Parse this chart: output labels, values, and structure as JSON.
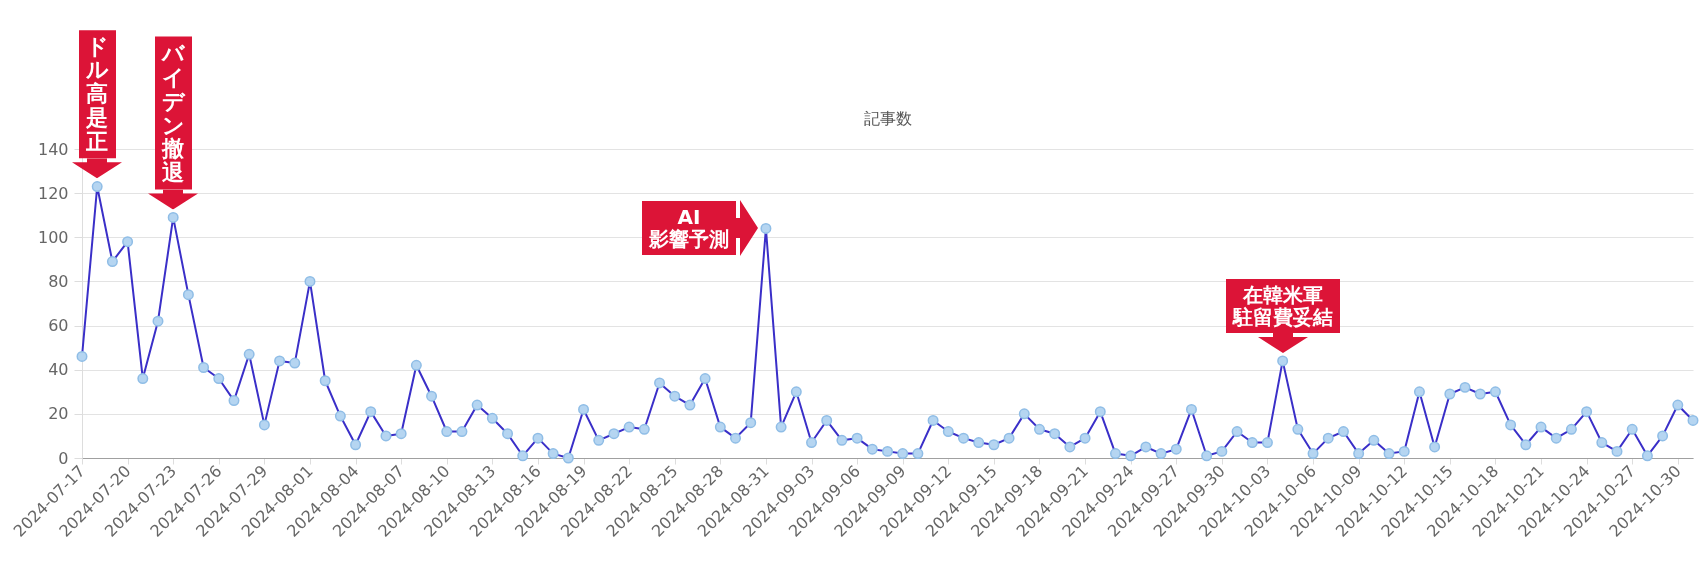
{
  "chart_data": {
    "type": "line",
    "title": "記事数",
    "x": [
      "2024-07-17",
      "2024-07-18",
      "2024-07-19",
      "2024-07-20",
      "2024-07-21",
      "2024-07-22",
      "2024-07-23",
      "2024-07-24",
      "2024-07-25",
      "2024-07-26",
      "2024-07-27",
      "2024-07-28",
      "2024-07-29",
      "2024-07-30",
      "2024-07-31",
      "2024-08-01",
      "2024-08-02",
      "2024-08-03",
      "2024-08-04",
      "2024-08-05",
      "2024-08-06",
      "2024-08-07",
      "2024-08-08",
      "2024-08-09",
      "2024-08-10",
      "2024-08-11",
      "2024-08-12",
      "2024-08-13",
      "2024-08-14",
      "2024-08-15",
      "2024-08-16",
      "2024-08-17",
      "2024-08-18",
      "2024-08-19",
      "2024-08-20",
      "2024-08-21",
      "2024-08-22",
      "2024-08-23",
      "2024-08-24",
      "2024-08-25",
      "2024-08-26",
      "2024-08-27",
      "2024-08-28",
      "2024-08-29",
      "2024-08-30",
      "2024-08-31",
      "2024-09-01",
      "2024-09-02",
      "2024-09-03",
      "2024-09-04",
      "2024-09-05",
      "2024-09-06",
      "2024-09-07",
      "2024-09-08",
      "2024-09-09",
      "2024-09-10",
      "2024-09-11",
      "2024-09-12",
      "2024-09-13",
      "2024-09-14",
      "2024-09-15",
      "2024-09-16",
      "2024-09-17",
      "2024-09-18",
      "2024-09-19",
      "2024-09-20",
      "2024-09-21",
      "2024-09-22",
      "2024-09-23",
      "2024-09-24",
      "2024-09-25",
      "2024-09-26",
      "2024-09-27",
      "2024-09-28",
      "2024-09-29",
      "2024-09-30",
      "2024-10-01",
      "2024-10-02",
      "2024-10-03",
      "2024-10-04",
      "2024-10-05",
      "2024-10-06",
      "2024-10-07",
      "2024-10-08",
      "2024-10-09",
      "2024-10-10",
      "2024-10-11",
      "2024-10-12",
      "2024-10-13",
      "2024-10-14",
      "2024-10-15",
      "2024-10-16",
      "2024-10-17",
      "2024-10-18",
      "2024-10-19",
      "2024-10-20",
      "2024-10-21",
      "2024-10-22",
      "2024-10-23",
      "2024-10-24",
      "2024-10-25",
      "2024-10-26",
      "2024-10-27",
      "2024-10-28",
      "2024-10-29",
      "2024-10-30",
      "2024-10-31"
    ],
    "series": [
      {
        "color": "#3a2fc8",
        "values": [
          46,
          123,
          89,
          98,
          36,
          62,
          109,
          74,
          41,
          36,
          26,
          47,
          15,
          44,
          43,
          80,
          35,
          19,
          6,
          21,
          10,
          11,
          42,
          28,
          12,
          12,
          24,
          18,
          11,
          1,
          9,
          2,
          0,
          22,
          8,
          11,
          14,
          13,
          34,
          28,
          24,
          36,
          14,
          9,
          16,
          104,
          14,
          30,
          7,
          17,
          8,
          9,
          4,
          3,
          2,
          2,
          17,
          12,
          9,
          7,
          6,
          9,
          20,
          13,
          11,
          5,
          9,
          21,
          2,
          1,
          5,
          2,
          4,
          22,
          1,
          3,
          12,
          7,
          7,
          44,
          13,
          2,
          9,
          12,
          2,
          8,
          2,
          3,
          30,
          5,
          29,
          32,
          29,
          30,
          15,
          6,
          14,
          9,
          13,
          21,
          7,
          3,
          13,
          1,
          10,
          24,
          17
        ]
      }
    ],
    "xlim": [
      "2024-07-17",
      "2024-10-31"
    ],
    "xticks": [
      "2024-07-17",
      "2024-07-20",
      "2024-07-23",
      "2024-07-26",
      "2024-07-29",
      "2024-08-01",
      "2024-08-04",
      "2024-08-07",
      "2024-08-10",
      "2024-08-13",
      "2024-08-16",
      "2024-08-19",
      "2024-08-22",
      "2024-08-25",
      "2024-08-28",
      "2024-08-31",
      "2024-09-03",
      "2024-09-06",
      "2024-09-09",
      "2024-09-12",
      "2024-09-15",
      "2024-09-18",
      "2024-09-21",
      "2024-09-24",
      "2024-09-27",
      "2024-09-30",
      "2024-10-03",
      "2024-10-06",
      "2024-10-09",
      "2024-10-12",
      "2024-10-15",
      "2024-10-18",
      "2024-10-21",
      "2024-10-24",
      "2024-10-27",
      "2024-10-30"
    ],
    "ylim": [
      0,
      140
    ],
    "yticks": [
      0,
      20,
      40,
      60,
      80,
      100,
      120,
      140
    ],
    "grid": "y",
    "marker": "circle",
    "line_style": "solid",
    "annotations": [
      {
        "text": "ドル高是正",
        "x": "2024-07-18",
        "y": 123
      },
      {
        "text": "バイデン撤退",
        "x": "2024-07-23",
        "y": 109
      },
      {
        "text": "AI影響予測",
        "x": "2024-08-31",
        "y": 104
      },
      {
        "text": "在韓米軍駐留費妥結",
        "x": "2024-10-04",
        "y": 44
      }
    ]
  }
}
